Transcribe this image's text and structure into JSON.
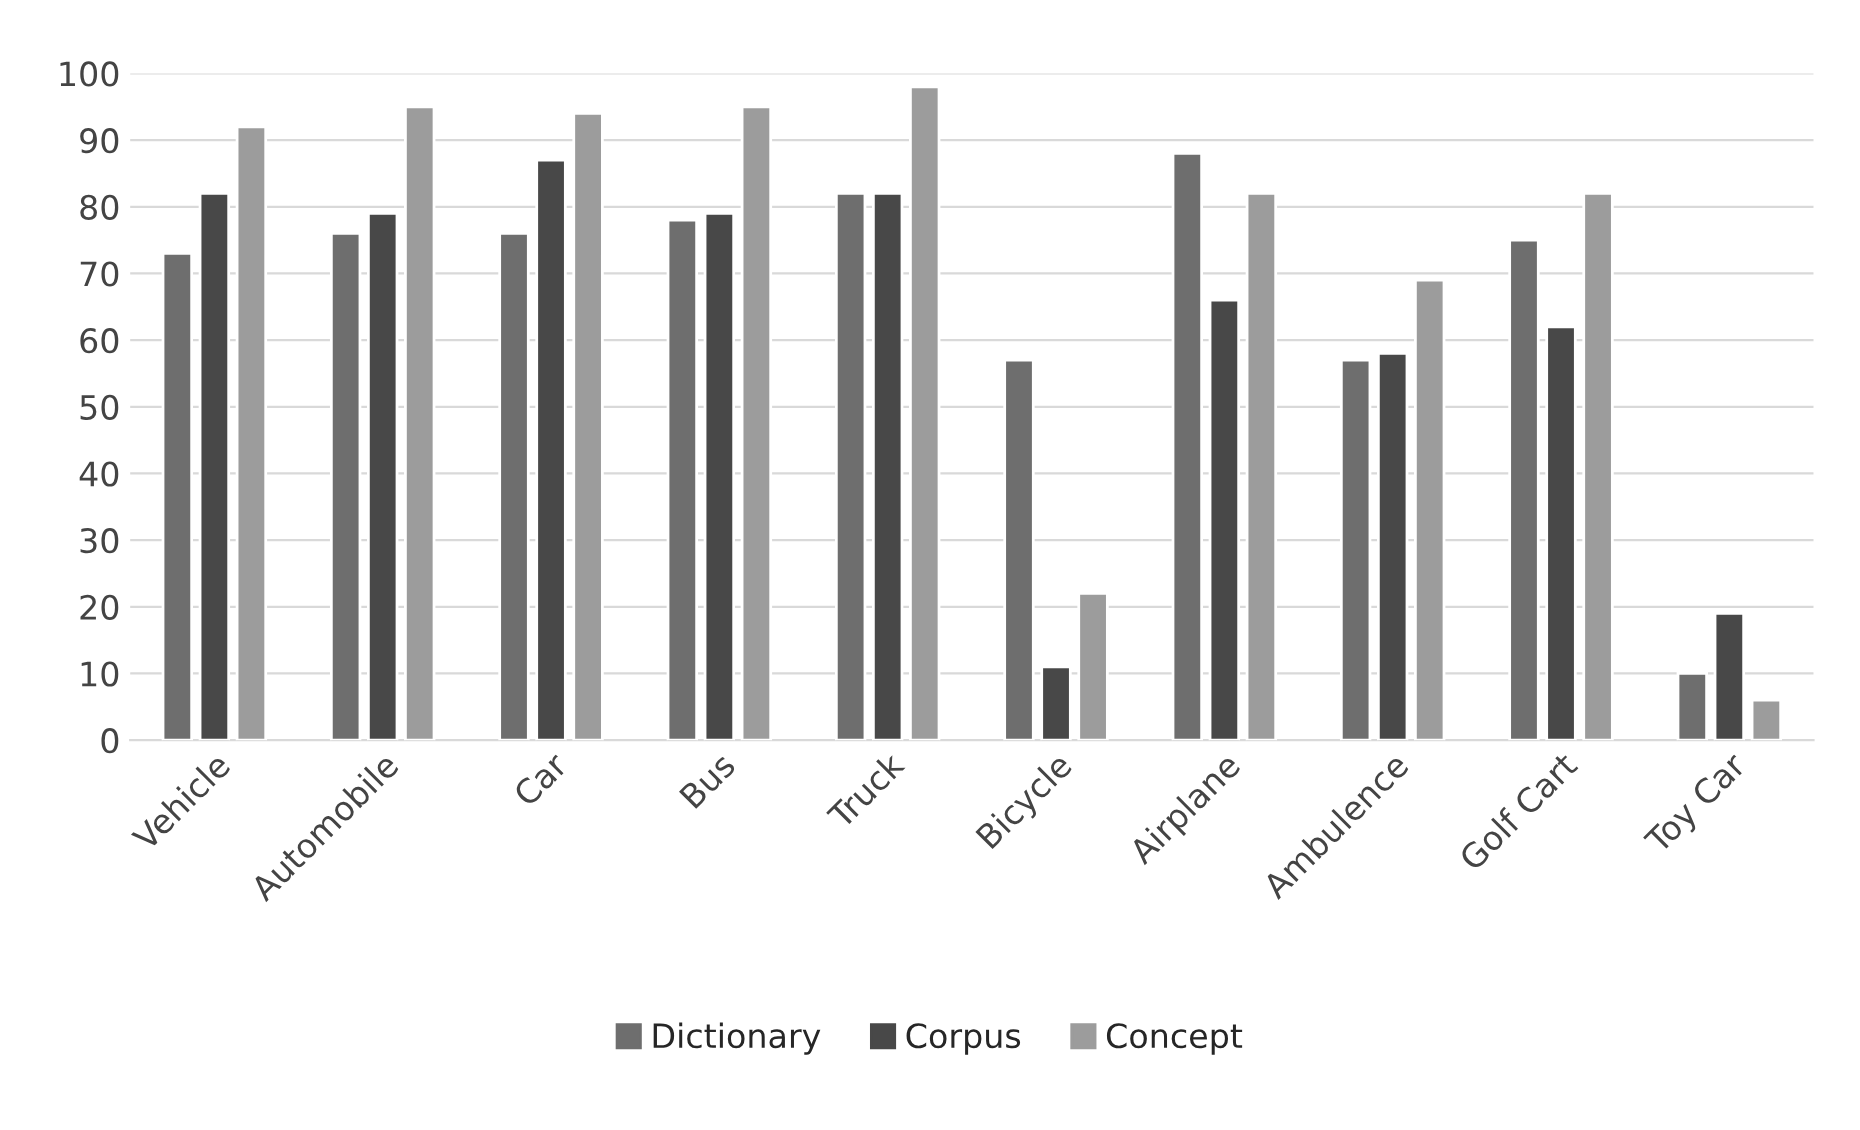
{
  "chart_data": {
    "type": "bar",
    "categories": [
      "Vehicle",
      "Automobile",
      "Car",
      "Bus",
      "Truck",
      "Bicycle",
      "Airplane",
      "Ambulence",
      "Golf Cart",
      "Toy Car"
    ],
    "series": [
      {
        "name": "Dictionary",
        "color": "#6e6e6e",
        "values": [
          73,
          76,
          76,
          78,
          82,
          57,
          88,
          57,
          75,
          10
        ]
      },
      {
        "name": "Corpus",
        "color": "#484848",
        "values": [
          82,
          79,
          87,
          79,
          82,
          11,
          66,
          58,
          62,
          19
        ]
      },
      {
        "name": "Concept",
        "color": "#9c9c9c",
        "values": [
          92,
          95,
          94,
          95,
          98,
          22,
          82,
          69,
          82,
          6
        ]
      }
    ],
    "ylim": [
      0,
      100
    ],
    "yticks": [
      0,
      10,
      20,
      30,
      40,
      50,
      60,
      70,
      80,
      90,
      100
    ],
    "grid": "y",
    "legend": "bottom"
  }
}
